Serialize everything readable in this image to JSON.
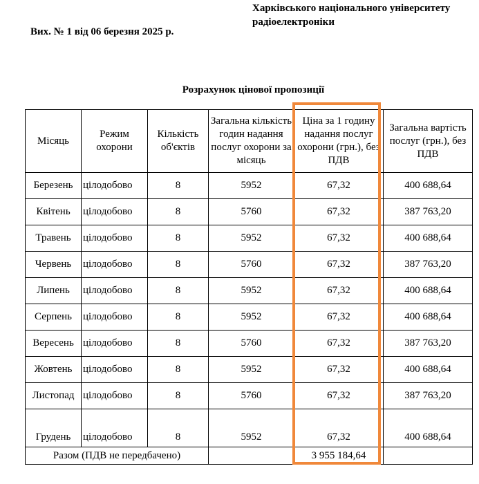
{
  "header": {
    "org_line1": "Харківського національного університету",
    "org_line2": "радіоелектроніки",
    "reference": "Вих. № 1 від 06 березня 2025 р."
  },
  "title": "Розрахунок цінової пропозиції",
  "table": {
    "columns": [
      "Місяць",
      "Режим охорони",
      "Кількість об'єктів",
      "Загальна кількість годин надання послуг охорони за місяць",
      "Ціна за 1 годину надання послуг охорони (грн.), без ПДВ",
      "Загальна вартість послуг (грн.), без ПДВ"
    ],
    "rows": [
      [
        "Березень",
        "цілодобово",
        "8",
        "5952",
        "67,32",
        "400 688,64"
      ],
      [
        "Квітень",
        "цілодобово",
        "8",
        "5760",
        "67,32",
        "387 763,20"
      ],
      [
        "Травень",
        "цілодобово",
        "8",
        "5952",
        "67,32",
        "400 688,64"
      ],
      [
        "Червень",
        "цілодобово",
        "8",
        "5760",
        "67,32",
        "387 763,20"
      ],
      [
        "Липень",
        "цілодобово",
        "8",
        "5952",
        "67,32",
        "400 688,64"
      ],
      [
        "Серпень",
        "цілодобово",
        "8",
        "5952",
        "67,32",
        "400 688,64"
      ],
      [
        "Вересень",
        "цілодобово",
        "8",
        "5760",
        "67,32",
        "387 763,20"
      ],
      [
        "Жовтень",
        "цілодобово",
        "8",
        "5952",
        "67,32",
        "400 688,64"
      ],
      [
        "Листопад",
        "цілодобово",
        "8",
        "5760",
        "67,32",
        "387 763,20"
      ],
      [
        "Грудень",
        "цілодобово",
        "8",
        "5952",
        "67,32",
        "400 688,64"
      ]
    ],
    "total_label": "Разом (ПДВ не передбачено)",
    "total_value": "3 955 184,64"
  },
  "highlight_color": "#f0883a"
}
